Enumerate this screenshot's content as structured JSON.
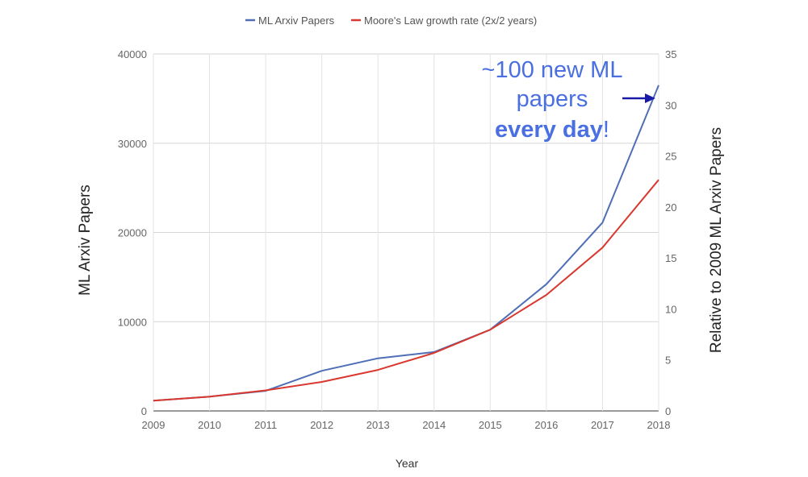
{
  "chart_data": {
    "type": "line",
    "x": [
      2009,
      2010,
      2011,
      2012,
      2013,
      2014,
      2015,
      2016,
      2017,
      2018
    ],
    "xlabel": "Year",
    "ylabel": "ML Arxiv Papers",
    "y2label": "Relative to 2009 ML Arxiv Papers",
    "ylim": [
      0,
      40000
    ],
    "y2lim": [
      0,
      35
    ],
    "yticks": [
      0,
      10000,
      20000,
      30000,
      40000
    ],
    "y2ticks": [
      0,
      5,
      10,
      15,
      20,
      25,
      30,
      35
    ],
    "grid": true,
    "legend_position": "top",
    "series": [
      {
        "name": "ML Arxiv Papers",
        "color": "#4e6fb5",
        "values": [
          1150,
          1600,
          2250,
          4500,
          5900,
          6600,
          9100,
          14200,
          21100,
          36500
        ]
      },
      {
        "name": "Moore's Law growth rate (2x/2 years)",
        "color": "#d9382f",
        "values": [
          1150,
          1600,
          2300,
          3250,
          4600,
          6500,
          9100,
          13000,
          18300,
          25900
        ]
      }
    ],
    "annotation": {
      "line1": "~100 new ML",
      "line2": "papers",
      "line3": "every day",
      "line3_suffix": "!",
      "color": "#4a6fe0",
      "arrow_color": "#1a1aa8"
    }
  }
}
